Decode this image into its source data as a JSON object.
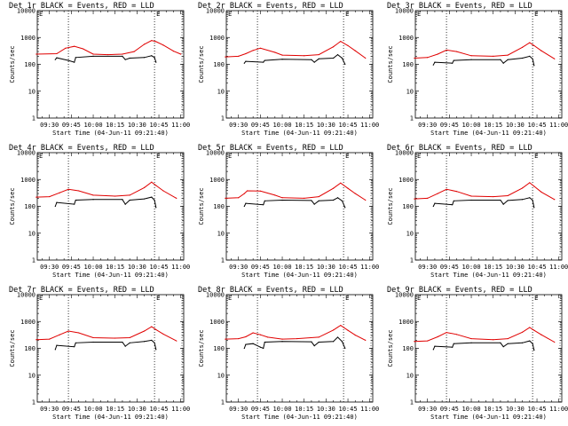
{
  "chart_data": [
    {
      "type": "line",
      "title": "Det 1r BLACK = Events, RED = LLD",
      "xlabel": "Start Time (04-Jun-11 09:21:40)",
      "ylabel": "Counts/sec",
      "yscale": "log",
      "ylim": [
        1,
        10000
      ],
      "xticks": [
        "09:30",
        "09:45",
        "10:00",
        "10:15",
        "10:30",
        "10:45",
        "11:00"
      ],
      "yticks": [
        "1",
        "10",
        "100",
        "1000",
        "10000"
      ],
      "marker": "E",
      "series": [
        {
          "color": "#e00000",
          "x": [
            "09:21",
            "09:35",
            "09:41",
            "09:47",
            "09:53",
            "10:00",
            "10:10",
            "10:20",
            "10:28",
            "10:35",
            "10:40",
            "10:43",
            "10:48",
            "10:55",
            "11:00"
          ],
          "y": [
            240,
            250,
            400,
            470,
            380,
            240,
            230,
            240,
            300,
            560,
            770,
            700,
            520,
            310,
            240
          ]
        },
        {
          "color": "#000000",
          "x": [
            "09:34",
            "09:35",
            "09:43",
            "09:47",
            "09:48",
            "10:00",
            "10:20",
            "10:22",
            "10:25",
            "10:35",
            "10:40",
            "10:42",
            "10:43"
          ],
          "y": [
            150,
            175,
            140,
            120,
            180,
            200,
            200,
            150,
            170,
            180,
            210,
            180,
            120
          ]
        }
      ]
    },
    {
      "type": "line",
      "title": "Det 2r BLACK = Events, RED = LLD",
      "xlabel": "Start Time (04-Jun-11 09:21:40)",
      "ylabel": "Counts/sec",
      "yscale": "log",
      "ylim": [
        1,
        10000
      ],
      "xticks": [
        "09:30",
        "09:45",
        "10:00",
        "10:15",
        "10:30",
        "10:45",
        "11:00"
      ],
      "yticks": [
        "1",
        "10",
        "100",
        "1000",
        "10000"
      ],
      "marker": "E",
      "series": [
        {
          "color": "#e00000",
          "x": [
            "09:21",
            "09:30",
            "09:35",
            "09:40",
            "09:45",
            "09:55",
            "10:00",
            "10:15",
            "10:25",
            "10:35",
            "10:40",
            "10:45",
            "10:50",
            "10:57"
          ],
          "y": [
            190,
            200,
            250,
            330,
            400,
            280,
            220,
            210,
            230,
            450,
            720,
            500,
            320,
            170
          ]
        },
        {
          "color": "#000000",
          "x": [
            "09:34",
            "09:35",
            "09:47",
            "09:48",
            "10:00",
            "10:20",
            "10:22",
            "10:25",
            "10:35",
            "10:38",
            "10:41",
            "10:43"
          ],
          "y": [
            110,
            130,
            120,
            140,
            155,
            150,
            120,
            160,
            170,
            230,
            170,
            100
          ]
        }
      ]
    },
    {
      "type": "line",
      "title": "Det 3r BLACK = Events, RED = LLD",
      "xlabel": "Start Time (04-Jun-11 09:21:40)",
      "ylabel": "Counts/sec",
      "yscale": "log",
      "ylim": [
        1,
        10000
      ],
      "xticks": [
        "09:30",
        "09:45",
        "10:00",
        "10:15",
        "10:30",
        "10:45",
        "11:00"
      ],
      "yticks": [
        "1",
        "10",
        "100",
        "1000",
        "10000"
      ],
      "marker": "E",
      "series": [
        {
          "color": "#e00000",
          "x": [
            "09:21",
            "09:30",
            "09:37",
            "09:43",
            "09:50",
            "10:00",
            "10:15",
            "10:25",
            "10:35",
            "10:40",
            "10:43",
            "10:48",
            "10:57"
          ],
          "y": [
            170,
            180,
            240,
            340,
            300,
            210,
            200,
            220,
            430,
            640,
            500,
            320,
            160
          ]
        },
        {
          "color": "#000000",
          "x": [
            "09:34",
            "09:35",
            "09:47",
            "09:48",
            "10:00",
            "10:20",
            "10:22",
            "10:25",
            "10:35",
            "10:40",
            "10:42",
            "10:43"
          ],
          "y": [
            95,
            120,
            110,
            140,
            150,
            150,
            110,
            150,
            170,
            200,
            160,
            90
          ]
        }
      ]
    },
    {
      "type": "line",
      "title": "Det 4r BLACK = Events, RED = LLD",
      "xlabel": "Start Time (04-Jun-11 09:21:40)",
      "ylabel": "Counts/sec",
      "yscale": "log",
      "ylim": [
        1,
        10000
      ],
      "xticks": [
        "09:30",
        "09:45",
        "10:00",
        "10:15",
        "10:30",
        "10:45",
        "11:00"
      ],
      "yticks": [
        "1",
        "10",
        "100",
        "1000",
        "10000"
      ],
      "marker": "E",
      "series": [
        {
          "color": "#e00000",
          "x": [
            "09:21",
            "09:30",
            "09:37",
            "09:43",
            "09:50",
            "10:00",
            "10:15",
            "10:25",
            "10:35",
            "10:40",
            "10:43",
            "10:48",
            "10:57"
          ],
          "y": [
            220,
            230,
            320,
            430,
            380,
            260,
            240,
            260,
            500,
            800,
            600,
            380,
            200
          ]
        },
        {
          "color": "#000000",
          "x": [
            "09:34",
            "09:35",
            "09:47",
            "09:48",
            "10:00",
            "10:20",
            "10:22",
            "10:25",
            "10:35",
            "10:40",
            "10:42",
            "10:43"
          ],
          "y": [
            100,
            140,
            120,
            170,
            180,
            180,
            120,
            170,
            190,
            220,
            170,
            90
          ]
        }
      ]
    },
    {
      "type": "line",
      "title": "Det 5r BLACK = Events, RED = LLD",
      "xlabel": "Start Time (04-Jun-11 09:21:40)",
      "ylabel": "Counts/sec",
      "yscale": "log",
      "ylim": [
        1,
        10000
      ],
      "xticks": [
        "09:30",
        "09:45",
        "10:00",
        "10:15",
        "10:30",
        "10:45",
        "11:00"
      ],
      "yticks": [
        "1",
        "10",
        "100",
        "1000",
        "10000"
      ],
      "marker": "E",
      "series": [
        {
          "color": "#e00000",
          "x": [
            "09:21",
            "09:30",
            "09:34",
            "09:36",
            "09:45",
            "09:55",
            "10:00",
            "10:15",
            "10:25",
            "10:35",
            "10:40",
            "10:45",
            "10:50",
            "10:57"
          ],
          "y": [
            200,
            210,
            300,
            380,
            370,
            260,
            210,
            200,
            230,
            470,
            740,
            470,
            300,
            170
          ]
        },
        {
          "color": "#000000",
          "x": [
            "09:34",
            "09:35",
            "09:47",
            "09:48",
            "10:00",
            "10:20",
            "10:22",
            "10:25",
            "10:35",
            "10:38",
            "10:41",
            "10:43"
          ],
          "y": [
            100,
            130,
            115,
            160,
            170,
            165,
            120,
            160,
            170,
            210,
            160,
            90
          ]
        }
      ]
    },
    {
      "type": "line",
      "title": "Det 6r BLACK = Events, RED = LLD",
      "xlabel": "Start Time (04-Jun-11 09:21:40)",
      "ylabel": "Counts/sec",
      "yscale": "log",
      "ylim": [
        1,
        10000
      ],
      "xticks": [
        "09:30",
        "09:45",
        "10:00",
        "10:15",
        "10:30",
        "10:45",
        "11:00"
      ],
      "yticks": [
        "1",
        "10",
        "100",
        "1000",
        "10000"
      ],
      "marker": "E",
      "series": [
        {
          "color": "#e00000",
          "x": [
            "09:21",
            "09:30",
            "09:37",
            "09:43",
            "09:50",
            "10:00",
            "10:15",
            "10:25",
            "10:35",
            "10:40",
            "10:43",
            "10:48",
            "10:57"
          ],
          "y": [
            190,
            200,
            300,
            430,
            360,
            240,
            230,
            250,
            480,
            760,
            560,
            340,
            180
          ]
        },
        {
          "color": "#000000",
          "x": [
            "09:34",
            "09:35",
            "09:47",
            "09:48",
            "10:00",
            "10:20",
            "10:22",
            "10:25",
            "10:35",
            "10:40",
            "10:42",
            "10:43"
          ],
          "y": [
            100,
            130,
            115,
            160,
            170,
            170,
            120,
            165,
            180,
            210,
            170,
            90
          ]
        }
      ]
    },
    {
      "type": "line",
      "title": "Det 7r BLACK = Events, RED = LLD",
      "xlabel": "Start Time (04-Jun-11 09:21:40)",
      "ylabel": "Counts/sec",
      "yscale": "log",
      "ylim": [
        1,
        10000
      ],
      "xticks": [
        "09:30",
        "09:45",
        "10:00",
        "10:15",
        "10:30",
        "10:45",
        "11:00"
      ],
      "yticks": [
        "1",
        "10",
        "100",
        "1000",
        "10000"
      ],
      "marker": "E",
      "series": [
        {
          "color": "#e00000",
          "x": [
            "09:21",
            "09:30",
            "09:37",
            "09:43",
            "09:50",
            "10:00",
            "10:15",
            "10:25",
            "10:35",
            "10:40",
            "10:43",
            "10:48",
            "10:57"
          ],
          "y": [
            210,
            220,
            320,
            440,
            380,
            250,
            240,
            250,
            440,
            640,
            500,
            340,
            190
          ]
        },
        {
          "color": "#000000",
          "x": [
            "09:34",
            "09:35",
            "09:47",
            "09:48",
            "10:00",
            "10:20",
            "10:22",
            "10:25",
            "10:35",
            "10:40",
            "10:42",
            "10:43"
          ],
          "y": [
            90,
            130,
            115,
            160,
            170,
            170,
            120,
            160,
            180,
            200,
            160,
            90
          ]
        }
      ]
    },
    {
      "type": "line",
      "title": "Det 8r BLACK = Events, RED = LLD",
      "xlabel": "Start Time (04-Jun-11 09:21:40)",
      "ylabel": "Counts/sec",
      "yscale": "log",
      "ylim": [
        1,
        10000
      ],
      "xticks": [
        "09:30",
        "09:45",
        "10:00",
        "10:15",
        "10:30",
        "10:45",
        "11:00"
      ],
      "yticks": [
        "1",
        "10",
        "100",
        "1000",
        "10000"
      ],
      "marker": "E",
      "series": [
        {
          "color": "#e00000",
          "x": [
            "09:21",
            "09:30",
            "09:35",
            "09:40",
            "09:45",
            "09:50",
            "10:00",
            "10:10",
            "10:25",
            "10:35",
            "10:40",
            "10:45",
            "10:50",
            "10:57"
          ],
          "y": [
            220,
            230,
            270,
            380,
            320,
            260,
            220,
            230,
            260,
            480,
            720,
            470,
            310,
            200
          ]
        },
        {
          "color": "#000000",
          "x": [
            "09:34",
            "09:35",
            "09:40",
            "09:45",
            "09:47",
            "09:48",
            "10:00",
            "10:20",
            "10:22",
            "10:25",
            "10:35",
            "10:38",
            "10:41",
            "10:43"
          ],
          "y": [
            100,
            140,
            150,
            110,
            100,
            170,
            180,
            175,
            125,
            170,
            180,
            260,
            180,
            100
          ]
        }
      ]
    },
    {
      "type": "line",
      "title": "Det 9r BLACK = Events, RED = LLD",
      "xlabel": "Start Time (04-Jun-11 09:21:40)",
      "ylabel": "Counts/sec",
      "yscale": "log",
      "ylim": [
        1,
        10000
      ],
      "xticks": [
        "09:30",
        "09:45",
        "10:00",
        "10:15",
        "10:30",
        "10:45",
        "11:00"
      ],
      "yticks": [
        "1",
        "10",
        "100",
        "1000",
        "10000"
      ],
      "marker": "E",
      "series": [
        {
          "color": "#e00000",
          "x": [
            "09:21",
            "09:30",
            "09:37",
            "09:43",
            "09:50",
            "10:00",
            "10:15",
            "10:25",
            "10:35",
            "10:40",
            "10:43",
            "10:48",
            "10:57"
          ],
          "y": [
            180,
            190,
            270,
            390,
            330,
            230,
            210,
            230,
            400,
            600,
            470,
            320,
            170
          ]
        },
        {
          "color": "#000000",
          "x": [
            "09:34",
            "09:35",
            "09:47",
            "09:48",
            "10:00",
            "10:20",
            "10:22",
            "10:25",
            "10:35",
            "10:40",
            "10:42",
            "10:43"
          ],
          "y": [
            90,
            120,
            110,
            150,
            160,
            160,
            115,
            150,
            160,
            190,
            150,
            85
          ]
        }
      ]
    }
  ]
}
